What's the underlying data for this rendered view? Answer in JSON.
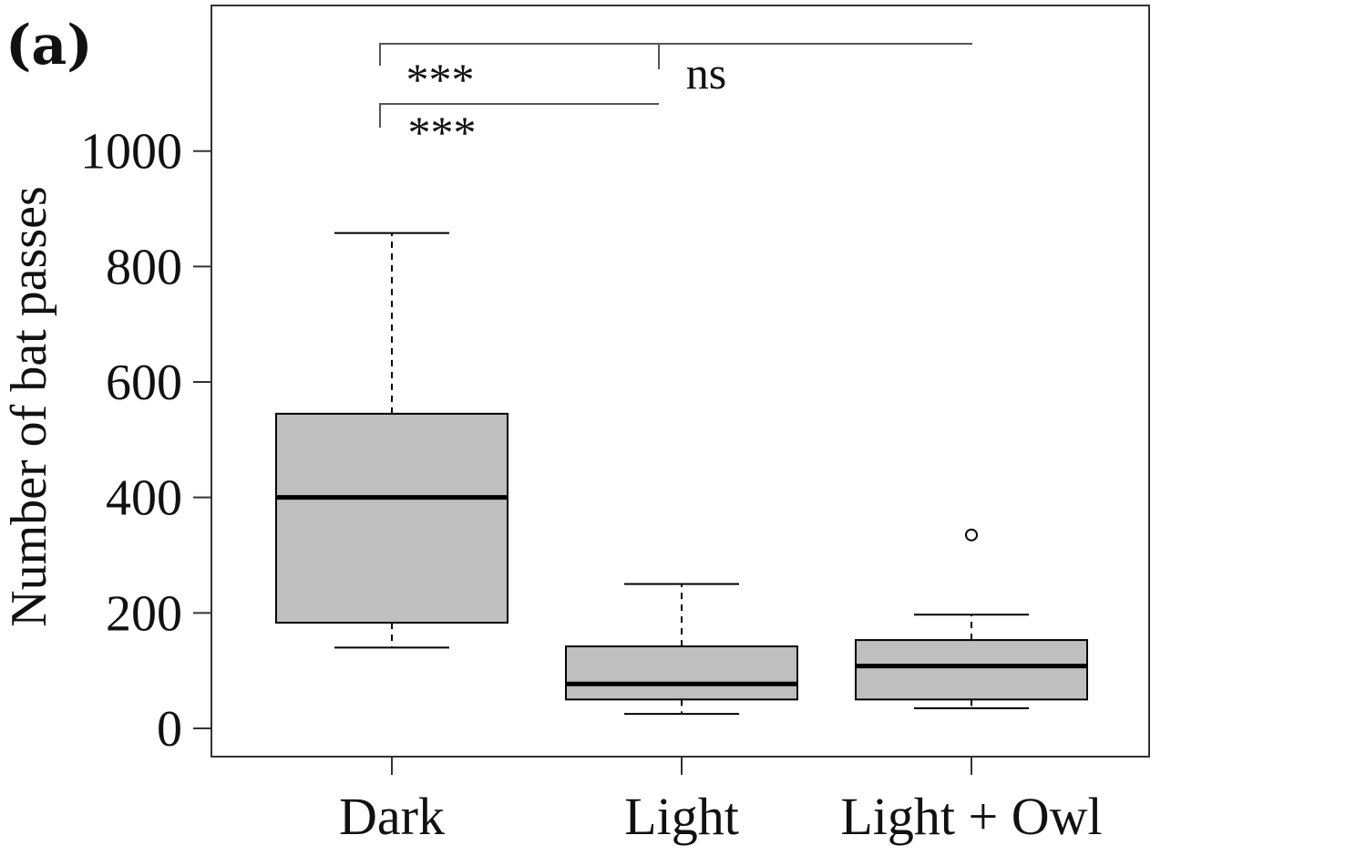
{
  "panel_label": "(a)",
  "chart_data": {
    "type": "box",
    "ylabel": "Number of bat passes",
    "xlabel": "",
    "ylim": [
      -50,
      1250
    ],
    "yticks": [
      0,
      200,
      400,
      600,
      800,
      1000
    ],
    "categories": [
      "Dark",
      "Light",
      "Light + Owl"
    ],
    "boxes": [
      {
        "category": "Dark",
        "whisker_low": 140,
        "q1": 183,
        "median": 400,
        "q3": 545,
        "whisker_high": 858,
        "outliers": []
      },
      {
        "category": "Light",
        "whisker_low": 25,
        "q1": 50,
        "median": 77,
        "q3": 142,
        "whisker_high": 250,
        "outliers": []
      },
      {
        "category": "Light + Owl",
        "whisker_low": 35,
        "q1": 50,
        "median": 108,
        "q3": 153,
        "whisker_high": 197,
        "outliers": [
          335
        ]
      }
    ],
    "significance": [
      {
        "from": "Dark",
        "to": "Light",
        "label": "***"
      },
      {
        "from": "Dark",
        "to": "Light + Owl",
        "label": "***"
      },
      {
        "from": "Light",
        "to": "Light + Owl",
        "label": "ns"
      }
    ],
    "colors": {
      "box_fill": "#bfbfbf",
      "line": "#000000"
    },
    "grid": false
  }
}
